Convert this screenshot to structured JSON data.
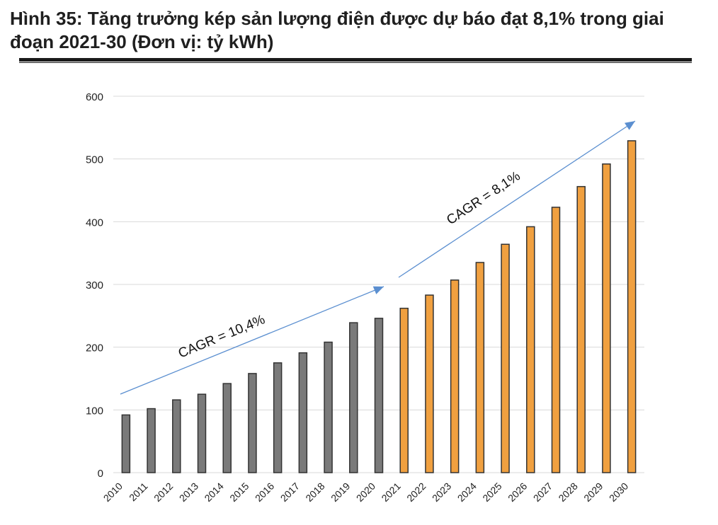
{
  "title": "Hình 35: Tăng trưởng kép sản lượng điện được dự báo đạt 8,1% trong giai đoạn 2021-30 (Đơn vị: tỷ kWh)",
  "chart_data": {
    "type": "bar",
    "categories": [
      "2010",
      "2011",
      "2012",
      "2013",
      "2014",
      "2015",
      "2016",
      "2017",
      "2018",
      "2019",
      "2020",
      "2021",
      "2022",
      "2023",
      "2024",
      "2025",
      "2026",
      "2027",
      "2028",
      "2029",
      "2030"
    ],
    "values": [
      92,
      102,
      116,
      125,
      142,
      158,
      175,
      191,
      208,
      239,
      246,
      262,
      283,
      307,
      335,
      364,
      392,
      423,
      456,
      492,
      529
    ],
    "ylim": [
      0,
      600
    ],
    "yticks": [
      0,
      100,
      200,
      300,
      400,
      500,
      600
    ],
    "grid": true,
    "historical_color": "#7a7a7a",
    "forecast_color": "#f0a040",
    "forecast_start": "2021",
    "annotations": [
      {
        "text": "CAGR = 10,4%",
        "period": "2010-2020"
      },
      {
        "text": "CAGR = 8,1%",
        "period": "2021-2030"
      }
    ]
  }
}
